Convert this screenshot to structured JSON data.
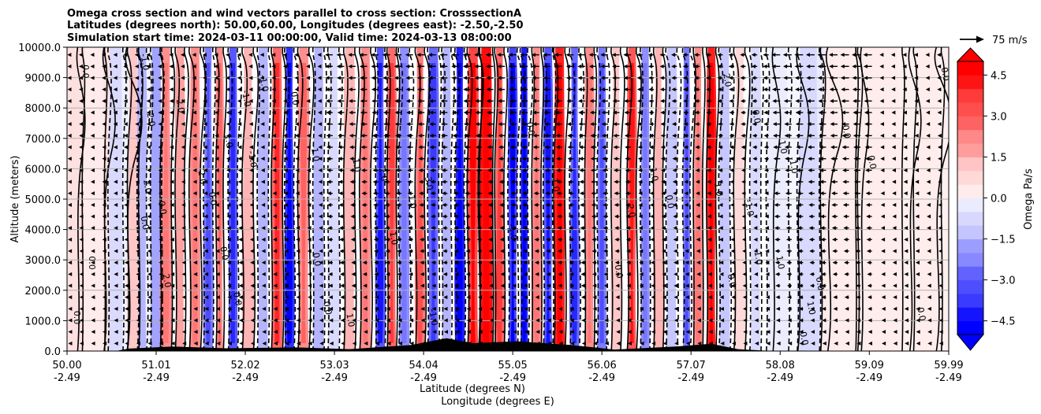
{
  "title_lines": [
    "Omega cross section and wind vectors parallel to cross section: CrosssectionA",
    "Latitudes (degrees north): 50.00,60.00, Longitudes (degrees east): -2.50,-2.50",
    "Simulation start time: 2024-03-11 00:00:00, Valid time: 2024-03-13 08:00:00"
  ],
  "chart_data": {
    "type": "heatmap",
    "subtype": "vertical cross section (filled contours + contour lines + wind vectors)",
    "xlabel_lines": [
      "Latitude (degrees N)",
      "Longitude (degrees E)"
    ],
    "ylabel": "Altitude (meters)",
    "xlim": [
      50.0,
      59.99
    ],
    "ylim": [
      0,
      10000
    ],
    "x_ticks": [
      {
        "lat": "50.00",
        "lon": "-2.49",
        "value": 50.0
      },
      {
        "lat": "51.01",
        "lon": "-2.49",
        "value": 51.01
      },
      {
        "lat": "52.02",
        "lon": "-2.49",
        "value": 52.02
      },
      {
        "lat": "53.03",
        "lon": "-2.49",
        "value": 53.03
      },
      {
        "lat": "54.04",
        "lon": "-2.49",
        "value": 54.04
      },
      {
        "lat": "55.05",
        "lon": "-2.49",
        "value": 55.05
      },
      {
        "lat": "56.06",
        "lon": "-2.49",
        "value": 56.06
      },
      {
        "lat": "57.07",
        "lon": "-2.49",
        "value": 57.07
      },
      {
        "lat": "58.08",
        "lon": "-2.49",
        "value": 58.08
      },
      {
        "lat": "59.09",
        "lon": "-2.49",
        "value": 59.09
      },
      {
        "lat": "59.99",
        "lon": "-2.49",
        "value": 59.99
      }
    ],
    "y_ticks": [
      {
        "label": "0.0",
        "value": 0
      },
      {
        "label": "1000.0",
        "value": 1000
      },
      {
        "label": "2000.0",
        "value": 2000
      },
      {
        "label": "3000.0",
        "value": 3000
      },
      {
        "label": "4000.0",
        "value": 4000
      },
      {
        "label": "5000.0",
        "value": 5000
      },
      {
        "label": "6000.0",
        "value": 6000
      },
      {
        "label": "7000.0",
        "value": 7000
      },
      {
        "label": "8000.0",
        "value": 8000
      },
      {
        "label": "9000.0",
        "value": 9000
      },
      {
        "label": "10000.0",
        "value": 10000
      }
    ],
    "grid": "horizontal",
    "colorbar": {
      "label": "Omega Pa/s",
      "range": [
        -5.0,
        5.0
      ],
      "extend": "both",
      "tick_labels": [
        {
          "label": "4.5",
          "value": 4.5
        },
        {
          "label": "3.0",
          "value": 3.0
        },
        {
          "label": "1.5",
          "value": 1.5
        },
        {
          "label": "0.0",
          "value": 0.0
        },
        {
          "label": "−1.5",
          "value": -1.5
        },
        {
          "label": "−3.0",
          "value": -3.0
        },
        {
          "label": "−4.5",
          "value": -4.5
        }
      ],
      "low_color": "#0000ff",
      "mid_color": "#ffffff",
      "high_color": "#ff0000"
    },
    "quiver_key": {
      "label": "75 m/s",
      "value": 75
    },
    "omega_bands": [
      {
        "lat": 50.3,
        "width": 0.12,
        "omega": 0.5
      },
      {
        "lat": 50.55,
        "width": 0.08,
        "omega": -0.6
      },
      {
        "lat": 50.75,
        "width": 0.06,
        "omega": 1.2
      },
      {
        "lat": 50.85,
        "width": 0.05,
        "omega": -1.5
      },
      {
        "lat": 51.01,
        "width": 0.06,
        "omega": -1.8
      },
      {
        "lat": 51.12,
        "width": 0.06,
        "omega": 2.2
      },
      {
        "lat": 51.28,
        "width": 0.05,
        "omega": 1.8
      },
      {
        "lat": 51.45,
        "width": 0.06,
        "omega": 2.2
      },
      {
        "lat": 51.6,
        "width": 0.05,
        "omega": -2.6
      },
      {
        "lat": 51.73,
        "width": 0.04,
        "omega": 2.4
      },
      {
        "lat": 51.88,
        "width": 0.05,
        "omega": -3.4
      },
      {
        "lat": 52.05,
        "width": 0.06,
        "omega": 1.6
      },
      {
        "lat": 52.22,
        "width": 0.06,
        "omega": -1.4
      },
      {
        "lat": 52.38,
        "width": 0.06,
        "omega": 3.2
      },
      {
        "lat": 52.52,
        "width": 0.05,
        "omega": -4.2
      },
      {
        "lat": 52.68,
        "width": 0.06,
        "omega": 2.4
      },
      {
        "lat": 52.85,
        "width": 0.06,
        "omega": -1.6
      },
      {
        "lat": 53.02,
        "width": 0.06,
        "omega": -0.8
      },
      {
        "lat": 53.2,
        "width": 0.06,
        "omega": 1.4
      },
      {
        "lat": 53.38,
        "width": 0.06,
        "omega": 2.2
      },
      {
        "lat": 53.55,
        "width": 0.05,
        "omega": -3.6
      },
      {
        "lat": 53.68,
        "width": 0.05,
        "omega": 3.0
      },
      {
        "lat": 53.82,
        "width": 0.06,
        "omega": -2.2
      },
      {
        "lat": 54.0,
        "width": 0.05,
        "omega": 2.6
      },
      {
        "lat": 54.15,
        "width": 0.06,
        "omega": -3.0
      },
      {
        "lat": 54.3,
        "width": 0.05,
        "omega": -1.4
      },
      {
        "lat": 54.45,
        "width": 0.05,
        "omega": -4.6
      },
      {
        "lat": 54.6,
        "width": 0.06,
        "omega": 3.8
      },
      {
        "lat": 54.75,
        "width": 0.07,
        "omega": 5.2
      },
      {
        "lat": 54.9,
        "width": 0.05,
        "omega": 3.0
      },
      {
        "lat": 55.05,
        "width": 0.05,
        "omega": -3.8
      },
      {
        "lat": 55.18,
        "width": 0.04,
        "omega": -4.8
      },
      {
        "lat": 55.32,
        "width": 0.05,
        "omega": 2.2
      },
      {
        "lat": 55.45,
        "width": 0.05,
        "omega": -3.6
      },
      {
        "lat": 55.58,
        "width": 0.06,
        "omega": 4.6
      },
      {
        "lat": 55.75,
        "width": 0.05,
        "omega": -3.2
      },
      {
        "lat": 55.92,
        "width": 0.05,
        "omega": 2.2
      },
      {
        "lat": 56.06,
        "width": 0.05,
        "omega": -2.8
      },
      {
        "lat": 56.22,
        "width": 0.05,
        "omega": 1.2
      },
      {
        "lat": 56.4,
        "width": 0.05,
        "omega": 3.6
      },
      {
        "lat": 56.55,
        "width": 0.05,
        "omega": -2.2
      },
      {
        "lat": 56.7,
        "width": 0.05,
        "omega": 1.6
      },
      {
        "lat": 56.85,
        "width": 0.06,
        "omega": -1.2
      },
      {
        "lat": 57.02,
        "width": 0.04,
        "omega": -2.6
      },
      {
        "lat": 57.15,
        "width": 0.05,
        "omega": 2.2
      },
      {
        "lat": 57.3,
        "width": 0.05,
        "omega": 4.8
      },
      {
        "lat": 57.45,
        "width": 0.06,
        "omega": -1.2
      },
      {
        "lat": 57.62,
        "width": 0.06,
        "omega": 0.8
      },
      {
        "lat": 57.8,
        "width": 0.06,
        "omega": -0.6
      },
      {
        "lat": 58.05,
        "width": 0.12,
        "omega": -0.3
      },
      {
        "lat": 58.4,
        "width": 0.12,
        "omega": -0.9
      },
      {
        "lat": 58.75,
        "width": 0.2,
        "omega": 0.3
      },
      {
        "lat": 59.2,
        "width": 0.25,
        "omega": 0.4
      },
      {
        "lat": 59.75,
        "width": 0.15,
        "omega": 0.3
      }
    ],
    "contour_labels": [
      {
        "text": "0.0",
        "lat": 50.18,
        "alt": 9200,
        "angle": 90
      },
      {
        "text": "0.0",
        "lat": 50.25,
        "alt": 2900,
        "angle": 90
      },
      {
        "text": "0.0",
        "lat": 50.08,
        "alt": 1100,
        "angle": 90
      },
      {
        "text": "-1.0",
        "lat": 50.85,
        "alt": 9500,
        "angle": 80
      },
      {
        "text": "2.0",
        "lat": 50.92,
        "alt": 7600,
        "angle": 80
      },
      {
        "text": "2.0",
        "lat": 50.88,
        "alt": 5400,
        "angle": 80
      },
      {
        "text": "0.0",
        "lat": 50.85,
        "alt": 4200,
        "angle": 80
      },
      {
        "text": "2.0",
        "lat": 51.1,
        "alt": 2300,
        "angle": 80
      },
      {
        "text": "0.0",
        "lat": 51.05,
        "alt": 4700,
        "angle": 80
      },
      {
        "text": "-2.0",
        "lat": 51.25,
        "alt": 8100,
        "angle": 80
      },
      {
        "text": "2.0",
        "lat": 51.5,
        "alt": 5700,
        "angle": 80
      },
      {
        "text": "0.0",
        "lat": 51.62,
        "alt": 5000,
        "angle": 80
      },
      {
        "text": "1.0",
        "lat": 51.8,
        "alt": 6900,
        "angle": 80
      },
      {
        "text": "0.0",
        "lat": 51.75,
        "alt": 3200,
        "angle": 80
      },
      {
        "text": "0.0",
        "lat": 51.9,
        "alt": 1700,
        "angle": 80
      },
      {
        "text": "-1.0",
        "lat": 52.0,
        "alt": 8300,
        "angle": 80
      },
      {
        "text": "-1.0",
        "lat": 52.07,
        "alt": 6300,
        "angle": 80
      },
      {
        "text": "-1.0",
        "lat": 52.2,
        "alt": 8800,
        "angle": 80
      },
      {
        "text": "0.0",
        "lat": 52.55,
        "alt": 8300,
        "angle": 80
      },
      {
        "text": "0.0",
        "lat": 52.8,
        "alt": 3000,
        "angle": 80
      },
      {
        "text": "0.0",
        "lat": 52.92,
        "alt": 1400,
        "angle": 80
      },
      {
        "text": "-1.0",
        "lat": 52.78,
        "alt": 6500,
        "angle": 80
      },
      {
        "text": "1.0",
        "lat": 53.25,
        "alt": 6100,
        "angle": 80
      },
      {
        "text": "2.0",
        "lat": 53.55,
        "alt": 5800,
        "angle": 80
      },
      {
        "text": "1.0",
        "lat": 53.18,
        "alt": 1000,
        "angle": 80
      },
      {
        "text": "1.0",
        "lat": 53.67,
        "alt": 3700,
        "angle": 80
      },
      {
        "text": "1.0",
        "lat": 53.88,
        "alt": 4900,
        "angle": 80
      },
      {
        "text": "3.0",
        "lat": 54.07,
        "alt": 5500,
        "angle": 80
      },
      {
        "text": "-1.0",
        "lat": 54.12,
        "alt": 1100,
        "angle": 80
      },
      {
        "text": "-1.0",
        "lat": 55.02,
        "alt": 3900,
        "angle": 80
      },
      {
        "text": "0.0",
        "lat": 55.22,
        "alt": 7300,
        "angle": 80
      },
      {
        "text": "-1.0",
        "lat": 55.5,
        "alt": 5500,
        "angle": 80
      },
      {
        "text": "0.0",
        "lat": 56.22,
        "alt": 2600,
        "angle": 80
      },
      {
        "text": "2.0",
        "lat": 56.36,
        "alt": 4600,
        "angle": 80
      },
      {
        "text": "1.0",
        "lat": 56.62,
        "alt": 5800,
        "angle": 80
      },
      {
        "text": "0.0",
        "lat": 56.8,
        "alt": 4900,
        "angle": 80
      },
      {
        "text": "2.0",
        "lat": 57.45,
        "alt": 8900,
        "angle": 80
      },
      {
        "text": "0.0",
        "lat": 57.5,
        "alt": 2300,
        "angle": 80
      },
      {
        "text": "1.0",
        "lat": 57.35,
        "alt": 5300,
        "angle": 80
      },
      {
        "text": "-1.0",
        "lat": 57.7,
        "alt": 4700,
        "angle": 80
      },
      {
        "text": "-1.0",
        "lat": 57.8,
        "alt": 3100,
        "angle": 80
      },
      {
        "text": "0.0",
        "lat": 57.78,
        "alt": 7700,
        "angle": 80
      },
      {
        "text": "1.0",
        "lat": 58.08,
        "alt": 6700,
        "angle": 80
      },
      {
        "text": "-1.0",
        "lat": 58.2,
        "alt": 6100,
        "angle": 80
      },
      {
        "text": "1.0",
        "lat": 58.05,
        "alt": 2900,
        "angle": 80
      },
      {
        "text": "1.0",
        "lat": 58.4,
        "alt": 1400,
        "angle": 80
      },
      {
        "text": "0.0",
        "lat": 58.5,
        "alt": 2200,
        "angle": 80
      },
      {
        "text": "0.0",
        "lat": 58.8,
        "alt": 7200,
        "angle": 80
      },
      {
        "text": "0.0",
        "lat": 59.09,
        "alt": 6200,
        "angle": 80
      },
      {
        "text": "0.0",
        "lat": 59.92,
        "alt": 9100,
        "angle": 80
      },
      {
        "text": "0.0",
        "lat": 59.65,
        "alt": 1200,
        "angle": 80
      },
      {
        "text": "0.0",
        "lat": 58.32,
        "alt": 400,
        "angle": 80
      }
    ],
    "terrain": [
      {
        "lat": 50.55,
        "alt": 0
      },
      {
        "lat": 50.7,
        "alt": 80
      },
      {
        "lat": 51.2,
        "alt": 150
      },
      {
        "lat": 51.8,
        "alt": 90
      },
      {
        "lat": 52.6,
        "alt": 120
      },
      {
        "lat": 53.2,
        "alt": 60
      },
      {
        "lat": 53.9,
        "alt": 200
      },
      {
        "lat": 54.3,
        "alt": 420
      },
      {
        "lat": 54.6,
        "alt": 260
      },
      {
        "lat": 55.1,
        "alt": 320
      },
      {
        "lat": 55.7,
        "alt": 200
      },
      {
        "lat": 56.2,
        "alt": 50
      },
      {
        "lat": 56.9,
        "alt": 150
      },
      {
        "lat": 57.3,
        "alt": 240
      },
      {
        "lat": 57.6,
        "alt": 60
      },
      {
        "lat": 58.0,
        "alt": 0
      }
    ],
    "wind_columns": [
      {
        "lat_from": 50.0,
        "lat_to": 50.6,
        "u": -1.5
      },
      {
        "lat_from": 50.6,
        "lat_to": 51.5,
        "u": -3
      },
      {
        "lat_from": 51.5,
        "lat_to": 53.0,
        "u": -4
      },
      {
        "lat_from": 53.0,
        "lat_to": 56.5,
        "u": -8
      },
      {
        "lat_from": 56.5,
        "lat_to": 58.0,
        "u": -6
      },
      {
        "lat_from": 58.0,
        "lat_to": 59.2,
        "u": -9
      },
      {
        "lat_from": 59.2,
        "lat_to": 60.0,
        "u": -4
      }
    ]
  }
}
